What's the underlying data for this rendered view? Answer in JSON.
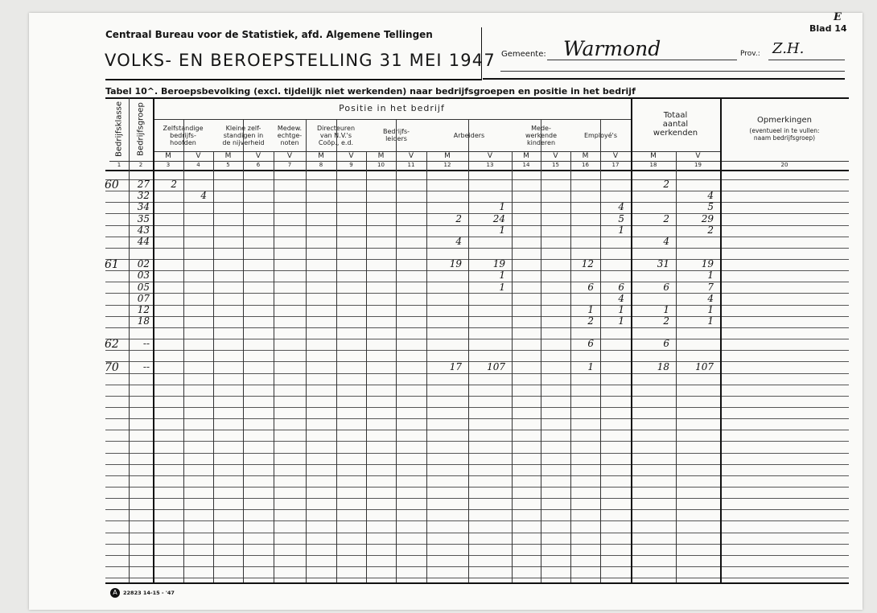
{
  "header": {
    "organisation": "Centraal Bureau voor de Statistiek, afd. Algemene Tellingen",
    "title": "VOLKS- EN BEROEPSTELLING 31 MEI 1947",
    "gemeente_label": "Gemeente:",
    "gemeente_value": "Warmond",
    "prov_label": "Prov.:",
    "prov_value": "Z.H.",
    "blad_mark": "E",
    "blad_label": "Blad 14"
  },
  "table_caption": "Tabel 10^.  Beroepsbevolking (excl. tijdelijk niet werkenden) naar bedrijfsgroepen en positie in het bedrijf",
  "columns": {
    "bedrijfsklasse": "Bedrijfsklasse",
    "bedrijfsgroep": "Bedrijfsgroep",
    "positie": "Positie in het bedrijf",
    "groups": [
      {
        "label": "Zelfstandige\nbedrijfs-\nhoofden"
      },
      {
        "label": "Kleine zelf-\nstandigen in\nde nijverheid"
      },
      {
        "label": "Medew.\nechtge-\nnoten"
      },
      {
        "label": "Directeuren\nvan N.V.'s\nCoöp., e.d."
      },
      {
        "label": "Bedrijfs-\nleiders"
      },
      {
        "label": "Arbeiders"
      },
      {
        "label": "Mede-\nwerkende\nkinderen"
      },
      {
        "label": "Employé's"
      }
    ],
    "totaal": "Totaal\naantal\nwerkenden",
    "opmerkingen": "Opmerkingen",
    "opmerkingen_note": "(eventueel in te vullen:\nnaam bedrijfsgroep)",
    "sex": [
      "M",
      "V",
      "M",
      "V",
      "V",
      "M",
      "V",
      "M",
      "V",
      "M",
      "V",
      "M",
      "V",
      "M",
      "V",
      "M",
      "V"
    ],
    "numbers": [
      "1",
      "2",
      "3",
      "4",
      "5",
      "6",
      "7",
      "8",
      "9",
      "10",
      "11",
      "12",
      "13",
      "14",
      "15",
      "16",
      "17",
      "18",
      "19",
      "20"
    ]
  },
  "rows": [
    {
      "klasse": "60",
      "groep": "27",
      "cells": {
        "3": "2",
        "18": "2"
      }
    },
    {
      "klasse": "",
      "groep": "32",
      "cells": {
        "4": "4",
        "19": "4"
      }
    },
    {
      "klasse": "",
      "groep": "34",
      "cells": {
        "13": "1",
        "17": "4",
        "19": "5"
      }
    },
    {
      "klasse": "",
      "groep": "35",
      "cells": {
        "12": "2",
        "13": "24",
        "17": "5",
        "18": "2",
        "19": "29"
      }
    },
    {
      "klasse": "",
      "groep": "43",
      "cells": {
        "13": "1",
        "17": "1",
        "19": "2"
      }
    },
    {
      "klasse": "",
      "groep": "44",
      "cells": {
        "12": "4",
        "18": "4"
      }
    },
    {
      "klasse": "",
      "groep": "",
      "cells": {}
    },
    {
      "klasse": "61",
      "groep": "02",
      "cells": {
        "12": "19",
        "13": "19",
        "16": "12",
        "18": "31",
        "19": "19"
      }
    },
    {
      "klasse": "",
      "groep": "03",
      "cells": {
        "13": "1",
        "19": "1"
      }
    },
    {
      "klasse": "",
      "groep": "05",
      "cells": {
        "13": "1",
        "16": "6",
        "17": "6",
        "18": "6",
        "19": "7"
      }
    },
    {
      "klasse": "",
      "groep": "07",
      "cells": {
        "17": "4",
        "19": "4"
      }
    },
    {
      "klasse": "",
      "groep": "12",
      "cells": {
        "16": "1",
        "17": "1",
        "18": "1",
        "19": "1"
      }
    },
    {
      "klasse": "",
      "groep": "18",
      "cells": {
        "16": "2",
        "17": "1",
        "18": "2",
        "19": "1"
      }
    },
    {
      "klasse": "",
      "groep": "",
      "cells": {}
    },
    {
      "klasse": "62",
      "groep": "--",
      "cells": {
        "16": "6",
        "18": "6"
      }
    },
    {
      "klasse": "",
      "groep": "",
      "cells": {}
    },
    {
      "klasse": "70",
      "groep": "--",
      "cells": {
        "12": "17",
        "13": "107",
        "16": "1",
        "18": "18",
        "19": "107"
      }
    }
  ],
  "footer": {
    "print_code": "22823 14-15 - '47"
  }
}
